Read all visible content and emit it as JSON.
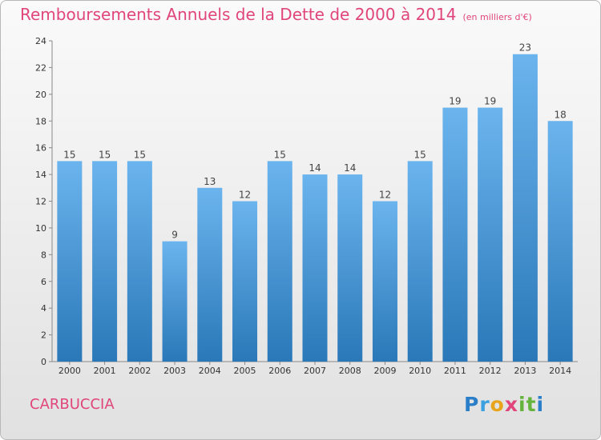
{
  "page": {
    "title": "Remboursements Annuels de la Dette de 2000 à 2014",
    "unit": "(en milliers d'€)",
    "commune": "CARBUCCIA",
    "logo_letters": [
      {
        "char": "P",
        "color": "#2a7fc8"
      },
      {
        "char": "r",
        "color": "#3aa1e0"
      },
      {
        "char": "o",
        "color": "#e8a51b"
      },
      {
        "char": "x",
        "color": "#e0457b"
      },
      {
        "char": "i",
        "color": "#63b33c"
      },
      {
        "char": "t",
        "color": "#63b33c"
      },
      {
        "char": "i",
        "color": "#2a7fc8"
      }
    ]
  },
  "chart_data": {
    "type": "bar",
    "title": "Remboursements Annuels de la Dette de 2000 à 2014",
    "subtitle": "(en milliers d'€)",
    "xlabel": "",
    "ylabel": "",
    "categories": [
      "2000",
      "2001",
      "2002",
      "2003",
      "2004",
      "2005",
      "2006",
      "2007",
      "2008",
      "2009",
      "2010",
      "2011",
      "2012",
      "2013",
      "2014"
    ],
    "values": [
      15,
      15,
      15,
      9,
      13,
      12,
      15,
      14,
      14,
      12,
      15,
      19,
      19,
      23,
      18
    ],
    "ylim": [
      0,
      24
    ],
    "yticks": [
      0,
      2,
      4,
      6,
      8,
      10,
      12,
      14,
      16,
      18,
      20,
      22,
      24
    ],
    "grid": false,
    "bar_color_top": "#6bb4ee",
    "bar_color_bottom": "#2a78b8"
  }
}
